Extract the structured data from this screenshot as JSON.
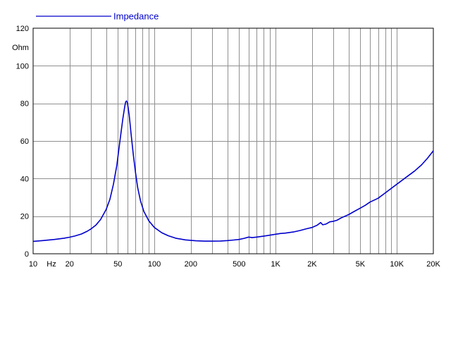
{
  "chart_data": {
    "type": "line",
    "title": "",
    "xlabel": "Hz",
    "ylabel": "Ohm",
    "x_scale": "log",
    "xlim": [
      10,
      20000
    ],
    "ylim": [
      0,
      120
    ],
    "grid": true,
    "legend_position": "top-left",
    "x_tick_labels": [
      {
        "value": 10,
        "label": "10"
      },
      {
        "value": 20,
        "label": "20"
      },
      {
        "value": 50,
        "label": "50"
      },
      {
        "value": 100,
        "label": "100"
      },
      {
        "value": 200,
        "label": "200"
      },
      {
        "value": 500,
        "label": "500"
      },
      {
        "value": 1000,
        "label": "1K"
      },
      {
        "value": 2000,
        "label": "2K"
      },
      {
        "value": 5000,
        "label": "5K"
      },
      {
        "value": 10000,
        "label": "10K"
      },
      {
        "value": 20000,
        "label": "20K"
      }
    ],
    "y_ticks": [
      0,
      20,
      40,
      60,
      80,
      100,
      120
    ],
    "series": [
      {
        "name": "Impedance",
        "color": "#0000cc",
        "points": [
          [
            10,
            6.6
          ],
          [
            12,
            7.0
          ],
          [
            15,
            7.6
          ],
          [
            18,
            8.3
          ],
          [
            20,
            8.8
          ],
          [
            22,
            9.4
          ],
          [
            25,
            10.5
          ],
          [
            28,
            12.0
          ],
          [
            30,
            13.2
          ],
          [
            33,
            15.3
          ],
          [
            36,
            18.2
          ],
          [
            40,
            23.5
          ],
          [
            43,
            29
          ],
          [
            46,
            37
          ],
          [
            49,
            47
          ],
          [
            52,
            60
          ],
          [
            55,
            72
          ],
          [
            57,
            78.5
          ],
          [
            58,
            80.8
          ],
          [
            59,
            81.3
          ],
          [
            60,
            80.2
          ],
          [
            62,
            74
          ],
          [
            64,
            65
          ],
          [
            67,
            53
          ],
          [
            70,
            43
          ],
          [
            73,
            35
          ],
          [
            77,
            28
          ],
          [
            82,
            22.5
          ],
          [
            90,
            17.5
          ],
          [
            100,
            14
          ],
          [
            115,
            11.2
          ],
          [
            130,
            9.6
          ],
          [
            150,
            8.3
          ],
          [
            180,
            7.4
          ],
          [
            220,
            6.9
          ],
          [
            260,
            6.7
          ],
          [
            300,
            6.7
          ],
          [
            350,
            6.8
          ],
          [
            400,
            7.0
          ],
          [
            450,
            7.3
          ],
          [
            500,
            7.6
          ],
          [
            550,
            8.2
          ],
          [
            600,
            8.9
          ],
          [
            640,
            8.6
          ],
          [
            700,
            8.9
          ],
          [
            800,
            9.4
          ],
          [
            900,
            9.9
          ],
          [
            1000,
            10.4
          ],
          [
            1100,
            10.8
          ],
          [
            1200,
            11.0
          ],
          [
            1400,
            11.6
          ],
          [
            1600,
            12.4
          ],
          [
            1800,
            13.3
          ],
          [
            2000,
            14.0
          ],
          [
            2200,
            15.2
          ],
          [
            2350,
            16.6
          ],
          [
            2450,
            15.4
          ],
          [
            2600,
            15.8
          ],
          [
            2800,
            17.0
          ],
          [
            3000,
            17.3
          ],
          [
            3200,
            17.8
          ],
          [
            3500,
            19.2
          ],
          [
            4000,
            20.8
          ],
          [
            4500,
            22.7
          ],
          [
            5000,
            24.3
          ],
          [
            5500,
            25.8
          ],
          [
            6000,
            27.5
          ],
          [
            7000,
            29.5
          ],
          [
            8000,
            32.3
          ],
          [
            9000,
            34.8
          ],
          [
            10000,
            37.0
          ],
          [
            12000,
            40.8
          ],
          [
            14000,
            44.0
          ],
          [
            16000,
            47.3
          ],
          [
            18000,
            51.0
          ],
          [
            20000,
            54.8
          ]
        ]
      }
    ]
  }
}
